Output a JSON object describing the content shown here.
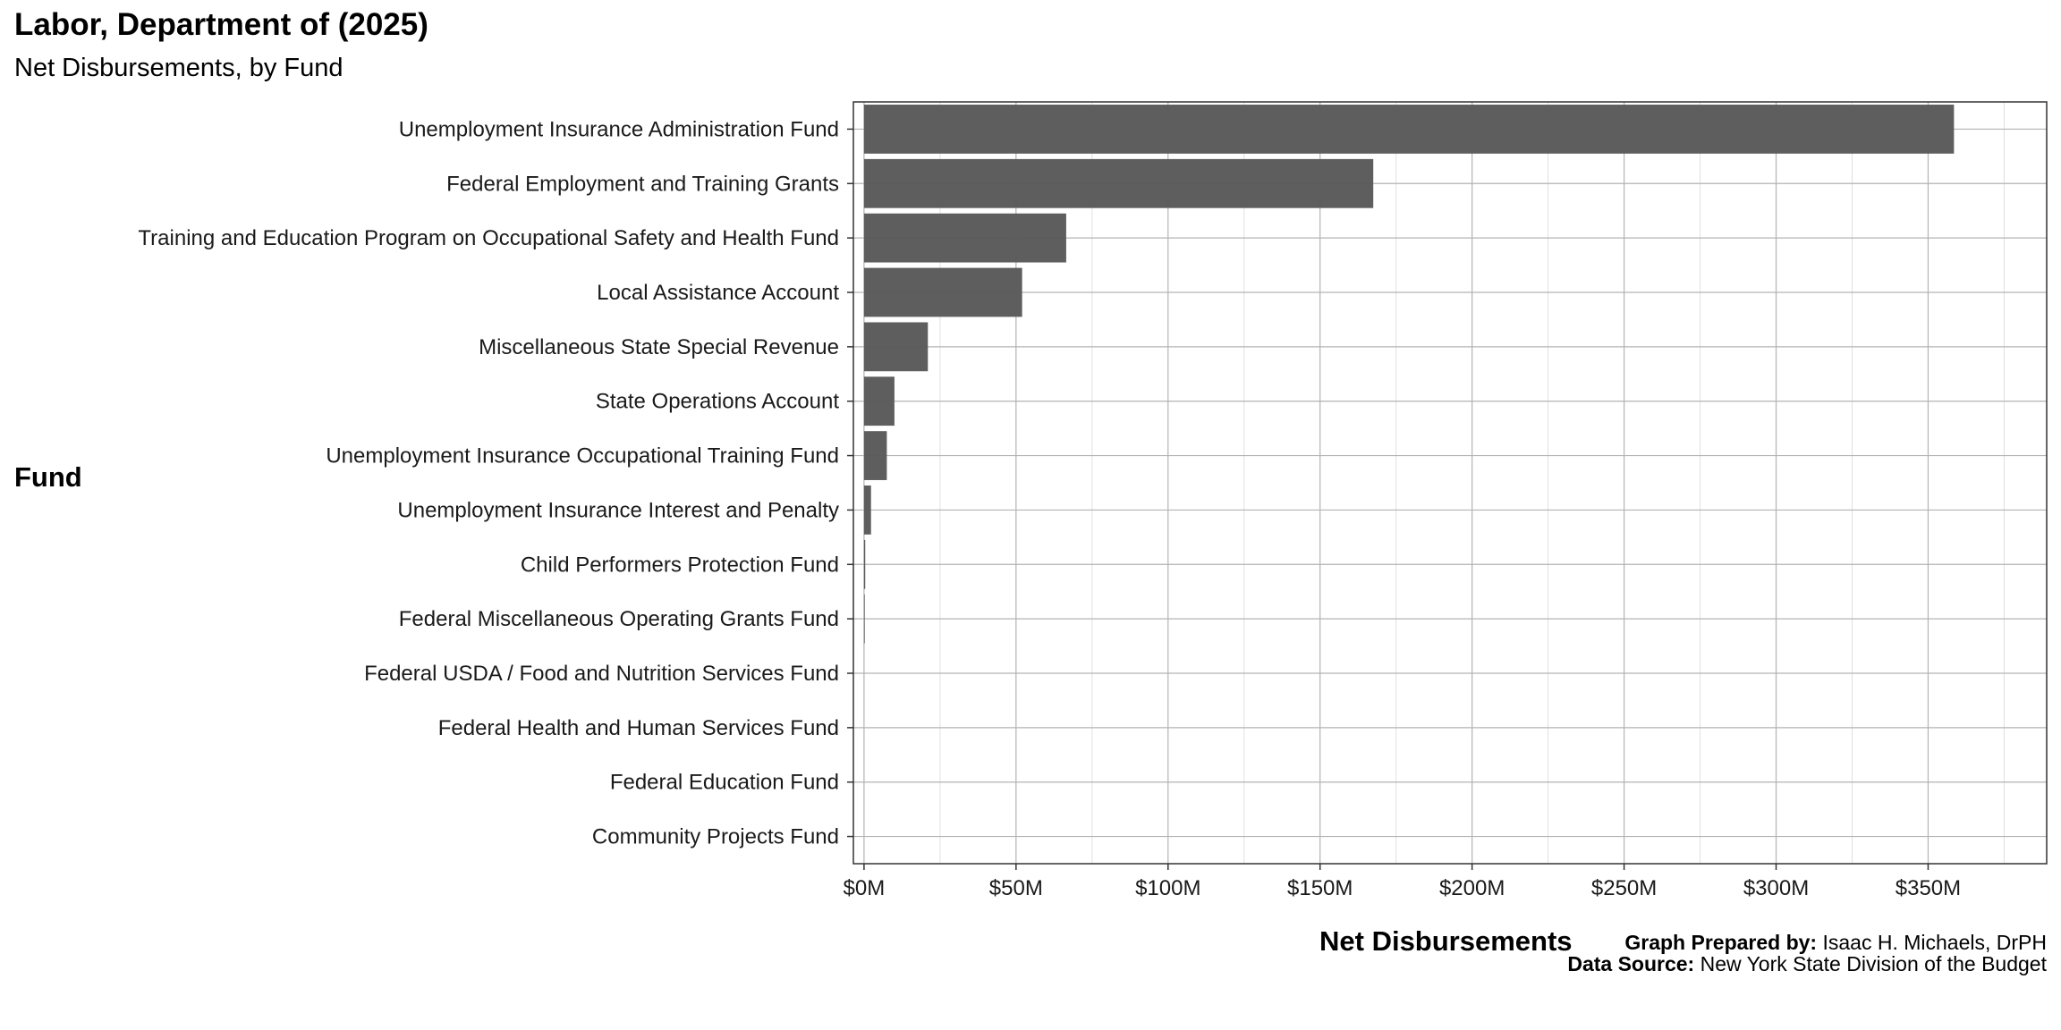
{
  "chart_data": {
    "type": "bar",
    "orientation": "horizontal",
    "title": "Labor, Department of (2025)",
    "subtitle": "Net Disbursements, by Fund",
    "xlabel": "Net Disbursements",
    "ylabel": "Fund",
    "xlim": [
      -3.5,
      389
    ],
    "x_ticks": [
      0,
      50,
      100,
      150,
      200,
      250,
      300,
      350
    ],
    "x_tick_labels": [
      "$0M",
      "$50M",
      "$100M",
      "$150M",
      "$200M",
      "$250M",
      "$300M",
      "$350M"
    ],
    "units": "millions USD",
    "grid": true,
    "bar_color": "#595959",
    "categories": [
      "Unemployment Insurance Administration Fund",
      "Federal Employment and Training Grants",
      "Training and Education Program on Occupational Safety and Health Fund",
      "Local Assistance Account",
      "Miscellaneous State Special Revenue",
      "State Operations Account",
      "Unemployment Insurance Occupational Training Fund",
      "Unemployment Insurance Interest and Penalty",
      "Child Performers Protection Fund",
      "Federal Miscellaneous Operating Grants Fund",
      "Federal USDA / Food and Nutrition Services Fund",
      "Federal Health and Human Services Fund",
      "Federal Education Fund",
      "Community Projects Fund"
    ],
    "values": [
      358.5,
      167.5,
      66.5,
      52,
      21,
      10,
      7.5,
      2.3,
      0.4,
      0.2,
      0,
      0,
      0,
      0
    ]
  },
  "caption": {
    "prepared_label": "Graph Prepared by:",
    "prepared_value": " Isaac H. Michaels, DrPH",
    "source_label": "Data Source:",
    "source_value": " New York State Division of the Budget"
  }
}
